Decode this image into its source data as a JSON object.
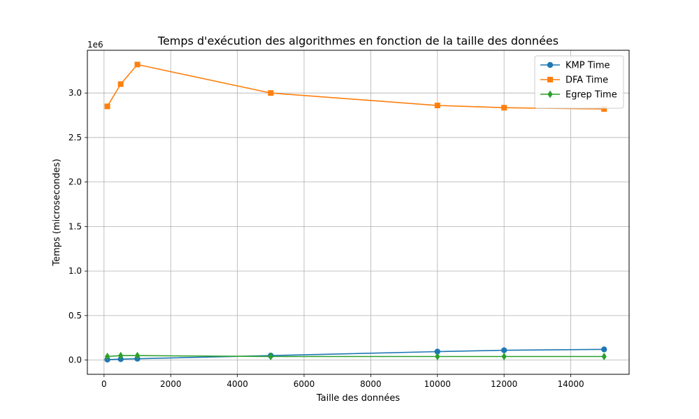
{
  "chart_data": {
    "type": "line",
    "title": "Temps d'exécution des algorithmes en fonction de la taille des données",
    "xlabel": "Taille des données",
    "ylabel": "Temps (microsecondes)",
    "y_offset_label": "1e6",
    "xlim": [
      -500,
      15750
    ],
    "ylim": [
      -0.16,
      3.48
    ],
    "y_units_scale": "1e6",
    "grid": true,
    "legend_position": "top-right",
    "xticks": [
      0,
      2000,
      4000,
      6000,
      8000,
      10000,
      12000,
      14000
    ],
    "xtick_labels": [
      "0",
      "2000",
      "4000",
      "6000",
      "8000",
      "10000",
      "12000",
      "14000"
    ],
    "yticks": [
      0.0,
      0.5,
      1.0,
      1.5,
      2.0,
      2.5,
      3.0
    ],
    "ytick_labels": [
      "0.0",
      "0.5",
      "1.0",
      "1.5",
      "2.0",
      "2.5",
      "3.0"
    ],
    "x": [
      100,
      500,
      1000,
      5000,
      10000,
      12000,
      15000
    ],
    "series": [
      {
        "name": "KMP Time",
        "color": "#1f77b4",
        "marker": "circle",
        "values": [
          0.005,
          0.01,
          0.015,
          0.05,
          0.095,
          0.11,
          0.12
        ]
      },
      {
        "name": "DFA Time",
        "color": "#ff7f0e",
        "marker": "square",
        "values": [
          2.85,
          3.1,
          3.32,
          3.0,
          2.86,
          2.835,
          2.82
        ]
      },
      {
        "name": "Egrep Time",
        "color": "#2ca02c",
        "marker": "diamond",
        "values": [
          0.04,
          0.05,
          0.05,
          0.04,
          0.04,
          0.04,
          0.04
        ]
      }
    ]
  }
}
